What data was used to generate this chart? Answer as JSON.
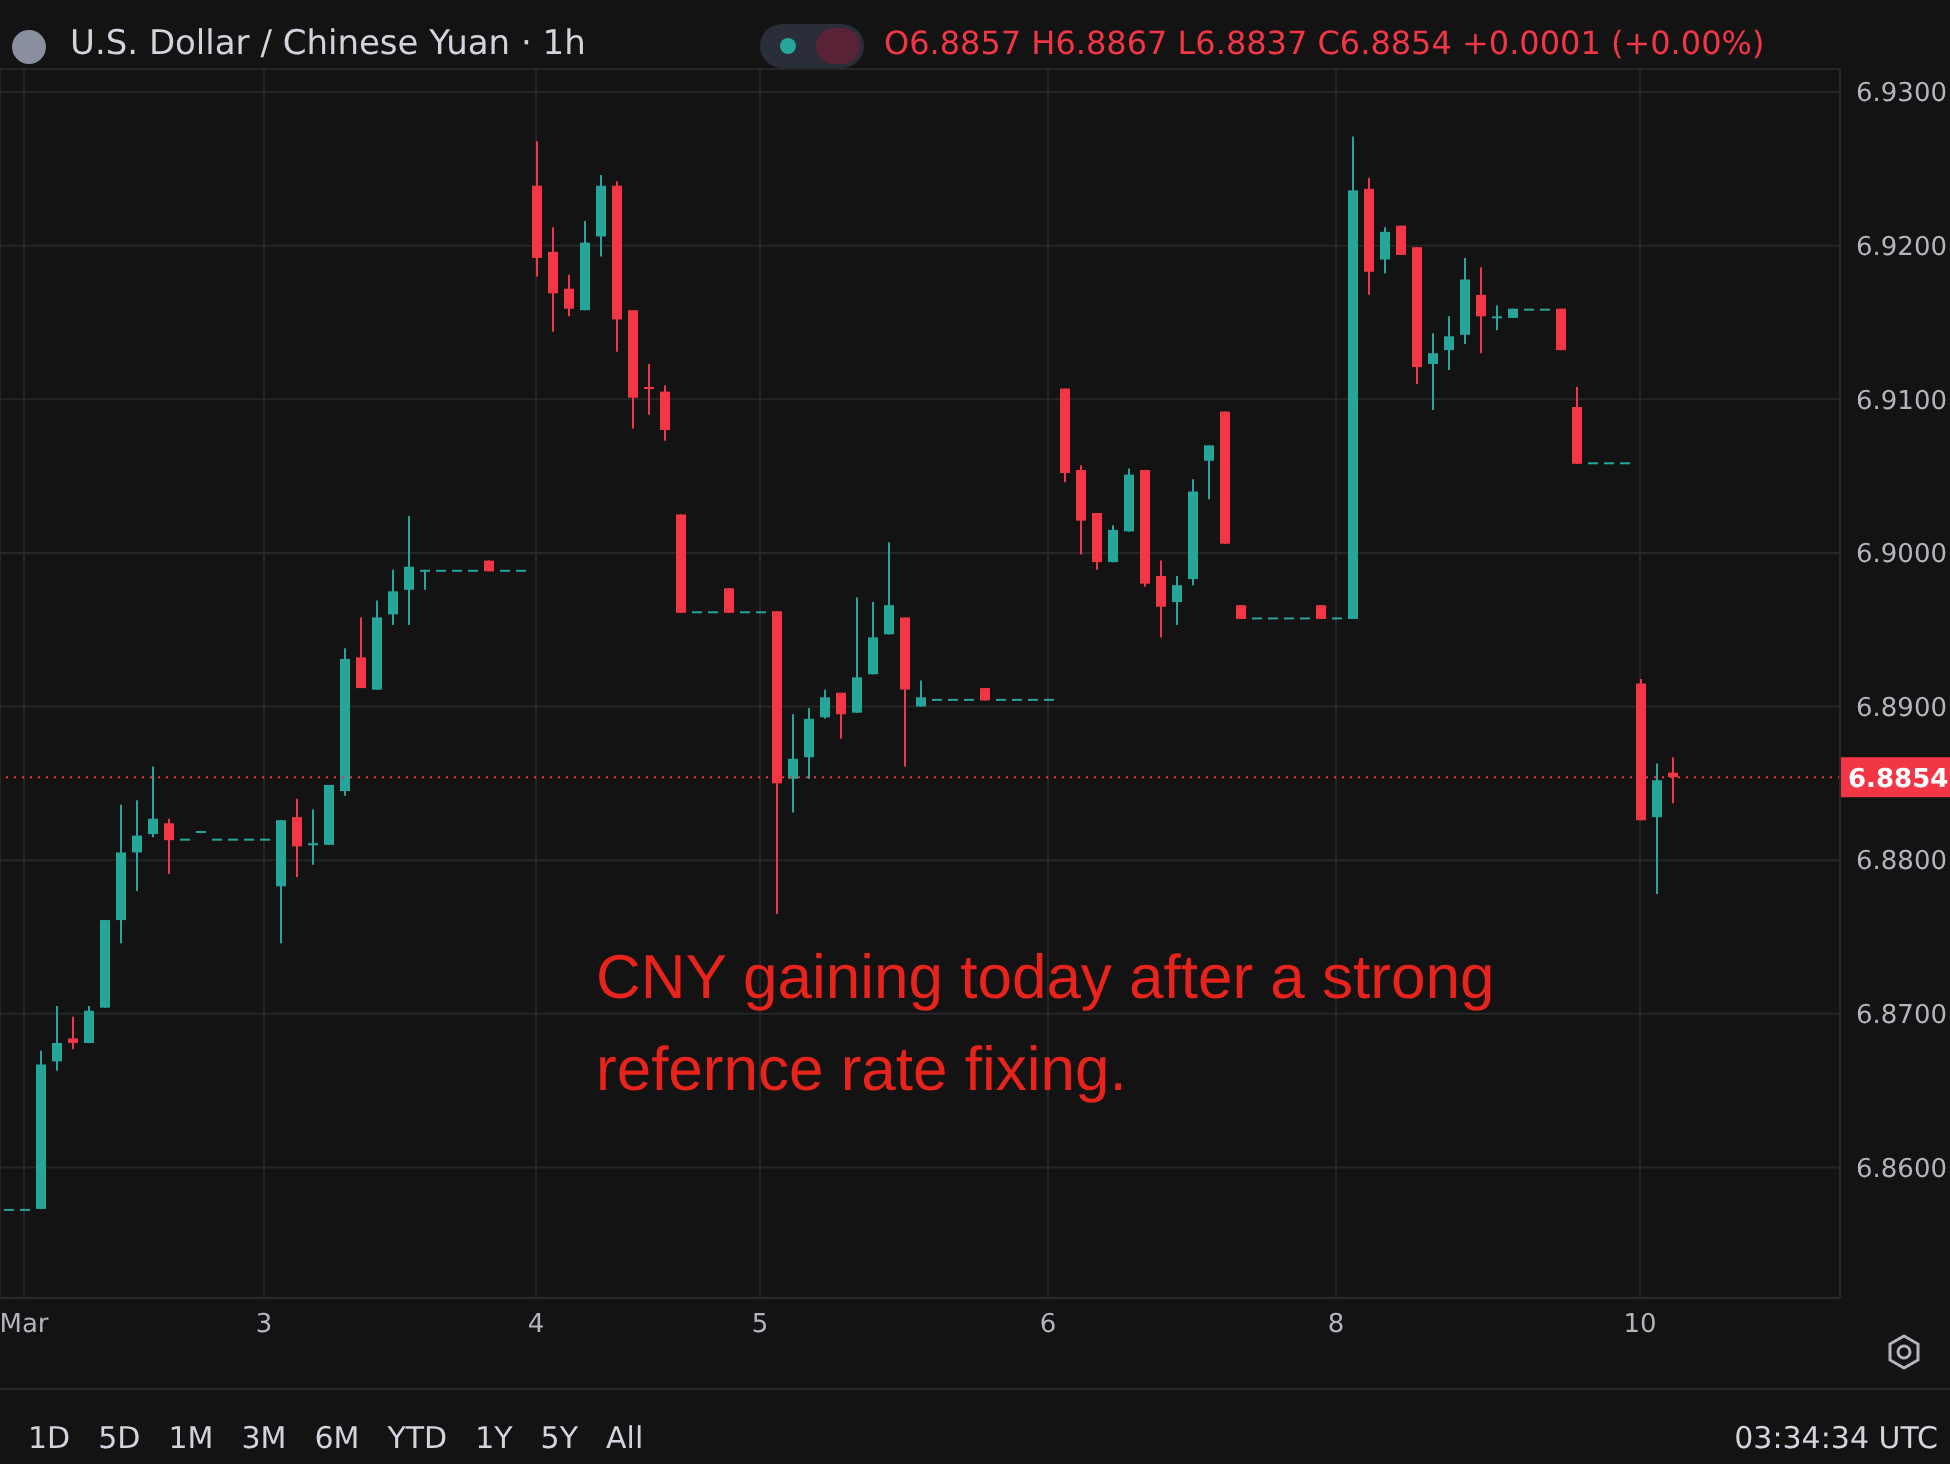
{
  "chart_data": {
    "type": "candlestick",
    "title": "U.S. Dollar / Chinese Yuan · 1h",
    "subtitle": "O6.8857 H6.8867 L6.8837 C6.8854 +0.0001 (+0.00%)",
    "annotations": [
      "CNY gaining today after a strong refernce rate fixing.",
      "1D",
      "5D",
      "1M",
      "3M",
      "6M",
      "YTD",
      "1Y",
      "5Y",
      "All",
      "03:34:34 UTC"
    ],
    "categories": [
      null,
      "Mar",
      null,
      null,
      null,
      null,
      null,
      null,
      null,
      null,
      null,
      null,
      null,
      null,
      null,
      null,
      "3",
      null,
      null,
      null,
      null,
      null,
      null,
      null,
      null,
      null,
      null,
      null,
      null,
      null,
      null,
      null,
      null,
      "4",
      null,
      null,
      null,
      null,
      null,
      null,
      null,
      null,
      null,
      null,
      null,
      null,
      null,
      "5",
      null,
      null,
      null,
      null,
      null,
      null,
      null,
      null,
      null,
      null,
      null,
      null,
      null,
      null,
      null,
      null,
      null,
      "6",
      null,
      null,
      null,
      null,
      null,
      null,
      null,
      null,
      null,
      null,
      null,
      null,
      null,
      null,
      null,
      null,
      null,
      "8",
      null,
      null,
      null,
      null,
      null,
      null,
      null,
      null,
      null,
      null,
      null,
      null,
      null,
      null,
      null,
      null,
      null,
      null,
      "10",
      null,
      null,
      null,
      null,
      null,
      null,
      null,
      null,
      null,
      null,
      null,
      null
    ],
    "ohlc": [
      [
        6.8573,
        6.8573,
        6.8573,
        6.8573
      ],
      [
        6.8573,
        6.8573,
        6.8573,
        6.8573
      ],
      [
        6.8573,
        6.8676,
        6.8573,
        6.8667
      ],
      [
        6.8669,
        6.8705,
        6.8663,
        6.8681
      ],
      [
        6.8684,
        6.8698,
        6.8677,
        6.8681
      ],
      [
        6.8681,
        6.8705,
        6.8681,
        6.8702
      ],
      [
        6.8704,
        6.8761,
        6.8704,
        6.8761
      ],
      [
        6.8761,
        6.8836,
        6.8746,
        6.8805
      ],
      [
        6.8805,
        6.8839,
        6.878,
        6.8816
      ],
      [
        6.8817,
        6.8861,
        6.8815,
        6.8827
      ],
      [
        6.8824,
        6.8827,
        6.8791,
        6.8813
      ],
      [
        6.8814,
        6.8814,
        6.8814,
        6.8814
      ],
      [
        6.8819,
        6.8819,
        6.8819,
        6.8819
      ],
      [
        6.8814,
        6.8814,
        6.8814,
        6.8814
      ],
      [
        6.8814,
        6.8814,
        6.8814,
        6.8814
      ],
      [
        6.8814,
        6.8814,
        6.8814,
        6.8814
      ],
      [
        6.8814,
        6.8814,
        6.8814,
        6.8814
      ],
      [
        6.8783,
        6.8826,
        6.8746,
        6.8826
      ],
      [
        6.8828,
        6.884,
        6.8789,
        6.8809
      ],
      [
        6.881,
        6.8833,
        6.8797,
        6.8811
      ],
      [
        6.881,
        6.8849,
        6.881,
        6.8849
      ],
      [
        6.8845,
        6.8938,
        6.8842,
        6.8931
      ],
      [
        6.8932,
        6.8958,
        6.8912,
        6.8912
      ],
      [
        6.8911,
        6.8969,
        6.8911,
        6.8958
      ],
      [
        6.896,
        6.8989,
        6.8953,
        6.8975
      ],
      [
        6.8976,
        6.9024,
        6.8953,
        6.8991
      ],
      [
        6.8989,
        6.8989,
        6.8976,
        6.8989
      ],
      [
        6.8989,
        6.8989,
        6.8989,
        6.8989
      ],
      [
        6.8989,
        6.8989,
        6.8989,
        6.8989
      ],
      [
        6.8989,
        6.8989,
        6.8989,
        6.8989
      ],
      [
        6.8995,
        6.8995,
        6.8988,
        6.8988
      ],
      [
        6.8989,
        6.8989,
        6.8989,
        6.8989
      ],
      [
        6.8989,
        6.8989,
        6.8989,
        6.8989
      ],
      [
        6.9239,
        6.9268,
        6.918,
        6.9192
      ],
      [
        6.9196,
        6.9212,
        6.9144,
        6.9169
      ],
      [
        6.9172,
        6.9181,
        6.9154,
        6.9159
      ],
      [
        6.9158,
        6.9216,
        6.9158,
        6.9202
      ],
      [
        6.9206,
        6.9246,
        6.9193,
        6.9239
      ],
      [
        6.9239,
        6.9242,
        6.9131,
        6.9152
      ],
      [
        6.9158,
        6.9158,
        6.9081,
        6.9101
      ],
      [
        6.9108,
        6.9123,
        6.909,
        6.9108
      ],
      [
        6.9105,
        6.9109,
        6.9073,
        6.908
      ],
      [
        6.9025,
        6.9025,
        6.8961,
        6.8961
      ],
      [
        6.8962,
        6.8962,
        6.8962,
        6.8962
      ],
      [
        6.8962,
        6.8962,
        6.8962,
        6.8962
      ],
      [
        6.8977,
        6.8977,
        6.8961,
        6.8961
      ],
      [
        6.8962,
        6.8962,
        6.8962,
        6.8962
      ],
      [
        6.8962,
        6.8962,
        6.8962,
        6.8962
      ],
      [
        6.8962,
        6.8962,
        6.8765,
        6.885
      ],
      [
        6.8853,
        6.8895,
        6.8831,
        6.8866
      ],
      [
        6.8867,
        6.8899,
        6.8853,
        6.8892
      ],
      [
        6.8893,
        6.8911,
        6.8892,
        6.8906
      ],
      [
        6.8909,
        6.8909,
        6.8879,
        6.8895
      ],
      [
        6.8896,
        6.8971,
        6.8896,
        6.8919
      ],
      [
        6.8921,
        6.8968,
        6.8921,
        6.8945
      ],
      [
        6.8947,
        6.9007,
        6.8947,
        6.8966
      ],
      [
        6.8958,
        6.8958,
        6.8861,
        6.8911
      ],
      [
        6.89,
        6.8917,
        6.89,
        6.8906
      ],
      [
        6.8905,
        6.8905,
        6.8905,
        6.8905
      ],
      [
        6.8905,
        6.8905,
        6.8905,
        6.8905
      ],
      [
        6.8905,
        6.8905,
        6.8905,
        6.8905
      ],
      [
        6.8912,
        6.8912,
        6.8904,
        6.8904
      ],
      [
        6.8905,
        6.8905,
        6.8905,
        6.8905
      ],
      [
        6.8905,
        6.8905,
        6.8905,
        6.8905
      ],
      [
        6.8905,
        6.8905,
        6.8905,
        6.8905
      ],
      [
        6.8905,
        6.8905,
        6.8905,
        6.8905
      ],
      [
        6.9107,
        6.9107,
        6.9046,
        6.9052
      ],
      [
        6.9054,
        6.9057,
        6.8999,
        6.9021
      ],
      [
        6.9026,
        6.9026,
        6.8989,
        6.8994
      ],
      [
        6.8994,
        6.9018,
        6.8994,
        6.9015
      ],
      [
        6.9014,
        6.9055,
        6.9014,
        6.9051
      ],
      [
        6.9054,
        6.9054,
        6.8978,
        6.898
      ],
      [
        6.8985,
        6.8995,
        6.8945,
        6.8965
      ],
      [
        6.8968,
        6.8985,
        6.8953,
        6.8979
      ],
      [
        6.8983,
        6.9048,
        6.8979,
        6.904
      ],
      [
        6.906,
        6.907,
        6.9035,
        6.907
      ],
      [
        6.9092,
        6.9092,
        6.9006,
        6.9006
      ],
      [
        6.8966,
        6.8966,
        6.8957,
        6.8957
      ],
      [
        6.8958,
        6.8958,
        6.8958,
        6.8958
      ],
      [
        6.8958,
        6.8958,
        6.8958,
        6.8958
      ],
      [
        6.8958,
        6.8958,
        6.8958,
        6.8958
      ],
      [
        6.8958,
        6.8958,
        6.8958,
        6.8958
      ],
      [
        6.8966,
        6.8966,
        6.8957,
        6.8957
      ],
      [
        6.8958,
        6.8958,
        6.8958,
        6.8958
      ],
      [
        6.8957,
        6.9271,
        6.8957,
        6.9236
      ],
      [
        6.9237,
        6.9244,
        6.9168,
        6.9183
      ],
      [
        6.9191,
        6.9212,
        6.9182,
        6.9209
      ],
      [
        6.9213,
        6.9213,
        6.9194,
        6.9194
      ],
      [
        6.9199,
        6.9199,
        6.911,
        6.9121
      ],
      [
        6.9123,
        6.9143,
        6.9093,
        6.913
      ],
      [
        6.9132,
        6.9154,
        6.9119,
        6.9141
      ],
      [
        6.9142,
        6.9192,
        6.9136,
        6.9178
      ],
      [
        6.9168,
        6.9186,
        6.913,
        6.9154
      ],
      [
        6.9154,
        6.9161,
        6.9145,
        6.9154
      ],
      [
        6.9153,
        6.9159,
        6.9153,
        6.9159
      ],
      [
        6.9159,
        6.9159,
        6.9159,
        6.9159
      ],
      [
        6.9159,
        6.9159,
        6.9159,
        6.9159
      ],
      [
        6.9159,
        6.9159,
        6.9132,
        6.9132
      ],
      [
        6.9095,
        6.9108,
        6.9058,
        6.9058
      ],
      [
        6.9059,
        6.9059,
        6.9059,
        6.9059
      ],
      [
        6.9059,
        6.9059,
        6.9059,
        6.9059
      ],
      [
        6.9059,
        6.9059,
        6.9059,
        6.9059
      ],
      [
        6.8915,
        6.8918,
        6.8826,
        6.8826
      ],
      [
        6.8828,
        6.8863,
        6.8778,
        6.8852
      ],
      [
        6.8857,
        6.8867,
        6.8837,
        6.8854
      ],
      null,
      null,
      null,
      null,
      null,
      null,
      null,
      null,
      null,
      null
    ],
    "colors": [
      "#26a69a",
      "#26a69a",
      "#26a69a",
      "#26a69a",
      "#f23645",
      "#26a69a",
      "#26a69a",
      "#26a69a",
      "#26a69a",
      "#26a69a",
      "#f23645",
      "#26a69a",
      "#26a69a",
      "#26a69a",
      "#26a69a",
      "#26a69a",
      "#26a69a",
      "#26a69a",
      "#f23645",
      "#26a69a",
      "#26a69a",
      "#26a69a",
      "#f23645",
      "#26a69a",
      "#26a69a",
      "#26a69a",
      "#26a69a",
      "#26a69a",
      "#26a69a",
      "#26a69a",
      "#f23645",
      "#26a69a",
      "#26a69a",
      "#f23645",
      "#f23645",
      "#f23645",
      "#26a69a",
      "#26a69a",
      "#f23645",
      "#f23645",
      "#f23645",
      "#f23645",
      "#f23645",
      "#26a69a",
      "#26a69a",
      "#f23645",
      "#26a69a",
      "#26a69a",
      "#f23645",
      "#26a69a",
      "#26a69a",
      "#26a69a",
      "#f23645",
      "#26a69a",
      "#26a69a",
      "#26a69a",
      "#f23645",
      "#26a69a",
      "#26a69a",
      "#26a69a",
      "#26a69a",
      "#f23645",
      "#26a69a",
      "#26a69a",
      "#26a69a",
      "#26a69a",
      "#f23645",
      "#f23645",
      "#f23645",
      "#26a69a",
      "#26a69a",
      "#f23645",
      "#f23645",
      "#26a69a",
      "#26a69a",
      "#26a69a",
      "#f23645",
      "#f23645",
      "#26a69a",
      "#26a69a",
      "#26a69a",
      "#26a69a",
      "#f23645",
      "#26a69a",
      "#26a69a",
      "#f23645",
      "#26a69a",
      "#f23645",
      "#f23645",
      "#26a69a",
      "#26a69a",
      "#26a69a",
      "#f23645",
      "#26a69a",
      "#26a69a",
      "#26a69a",
      "#26a69a",
      "#f23645",
      "#f23645",
      "#26a69a",
      "#26a69a",
      "#26a69a",
      "#f23645",
      "#26a69a",
      "#f23645",
      null,
      null,
      null,
      null,
      null,
      null,
      null,
      null,
      null,
      null
    ],
    "ylim": [
      6.8515,
      6.9315
    ],
    "yticks": [
      {
        "value": 6.86,
        "label": "6.8600"
      },
      {
        "value": 6.87,
        "label": "6.8700"
      },
      {
        "value": 6.88,
        "label": "6.8800"
      },
      {
        "value": 6.89,
        "label": "6.8900"
      },
      {
        "value": 6.9,
        "label": "6.9000"
      },
      {
        "value": 6.91,
        "label": "6.9100"
      },
      {
        "value": 6.92,
        "label": "6.9200"
      },
      {
        "value": 6.93,
        "label": "6.9300"
      }
    ],
    "ref_lines": [
      {
        "axis": "y",
        "value": 6.8854,
        "label": "6.8854",
        "color": "#f23645",
        "line_style": "dotted"
      }
    ],
    "grid": true
  }
}
